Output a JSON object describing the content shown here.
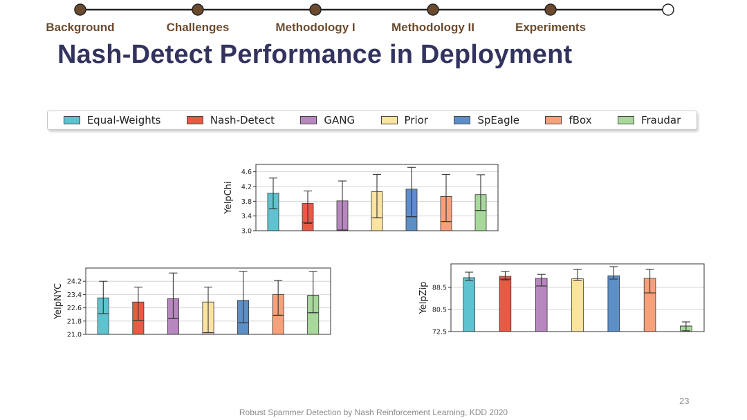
{
  "colors": {
    "brown": "#6b4a2e",
    "title": "#33335f",
    "series": [
      "#5fc3cf",
      "#e95a45",
      "#b787bf",
      "#fbe3a0",
      "#5d8fc7",
      "#f6a17c",
      "#a9d89c"
    ]
  },
  "nav": {
    "steps": [
      "Background",
      "Challenges",
      "Methodology I",
      "Methodology II",
      "Experiments"
    ],
    "current_index": 5
  },
  "title": "Nash-Detect Performance in Deployment",
  "legend": [
    "Equal-Weights",
    "Nash-Detect",
    "GANG",
    "Prior",
    "SpEagle",
    "fBox",
    "Fraudar"
  ],
  "chart_data": [
    {
      "type": "bar",
      "ylabel": "YelpChi",
      "categories": [
        "Equal-Weights",
        "Nash-Detect",
        "GANG",
        "Prior",
        "SpEagle",
        "fBox",
        "Fraudar"
      ],
      "values": [
        4.02,
        3.74,
        3.81,
        4.06,
        4.13,
        3.93,
        3.98
      ],
      "inner_low": [
        null,
        3.22,
        3.02,
        3.35,
        3.38,
        3.25,
        3.55
      ],
      "err_low": [
        3.6,
        3.2,
        3.0,
        3.35,
        3.38,
        3.25,
        3.55
      ],
      "err_high": [
        4.43,
        4.08,
        4.35,
        4.53,
        4.72,
        4.53,
        4.52
      ],
      "ylim": [
        3.0,
        4.8
      ],
      "yticks": [
        3.0,
        3.4,
        3.8,
        4.2,
        4.6
      ],
      "ytick_labels": [
        "3.0",
        "3.4",
        "3.8",
        "4.2",
        "4.6"
      ],
      "grid": true
    },
    {
      "type": "bar",
      "ylabel": "YelpNYC",
      "categories": [
        "Equal-Weights",
        "Nash-Detect",
        "GANG",
        "Prior",
        "SpEagle",
        "fBox",
        "Fraudar"
      ],
      "values": [
        23.2,
        22.95,
        23.15,
        22.95,
        23.05,
        23.4,
        23.35
      ],
      "inner_low": [
        22.25,
        21.85,
        21.95,
        21.1,
        21.7,
        22.15,
        22.3
      ],
      "err_low": [
        22.25,
        21.85,
        21.95,
        21.1,
        21.7,
        22.15,
        22.3
      ],
      "err_high": [
        24.2,
        23.85,
        24.7,
        23.85,
        24.8,
        24.25,
        24.8
      ],
      "ylim": [
        21.0,
        25.0
      ],
      "yticks": [
        21.0,
        21.8,
        22.6,
        23.4,
        24.2
      ],
      "ytick_labels": [
        "21.0",
        "21.8",
        "22.6",
        "23.4",
        "24.2"
      ],
      "grid": true
    },
    {
      "type": "bar",
      "ylabel": "YelpZip",
      "categories": [
        "Equal-Weights",
        "Nash-Detect",
        "GANG",
        "Prior",
        "SpEagle",
        "fBox",
        "Fraudar"
      ],
      "values": [
        92.0,
        92.5,
        91.8,
        91.6,
        92.7,
        91.8,
        74.5
      ],
      "inner_low": [
        null,
        91.5,
        89.0,
        null,
        null,
        86.5,
        74.5
      ],
      "err_low": [
        91.0,
        91.2,
        89.0,
        91.0,
        91.5,
        86.5,
        72.8
      ],
      "err_high": [
        94.0,
        94.3,
        93.2,
        95.0,
        96.0,
        95.0,
        76.0
      ],
      "ylim": [
        72.5,
        97.0
      ],
      "yticks": [
        72.5,
        80.5,
        88.5
      ],
      "ytick_labels": [
        "72.5",
        "80.5",
        "88.5"
      ],
      "grid": true
    }
  ],
  "footer": "Robust Spammer Detection by Nash Reinforcement Learning, KDD 2020",
  "page_number": "23"
}
